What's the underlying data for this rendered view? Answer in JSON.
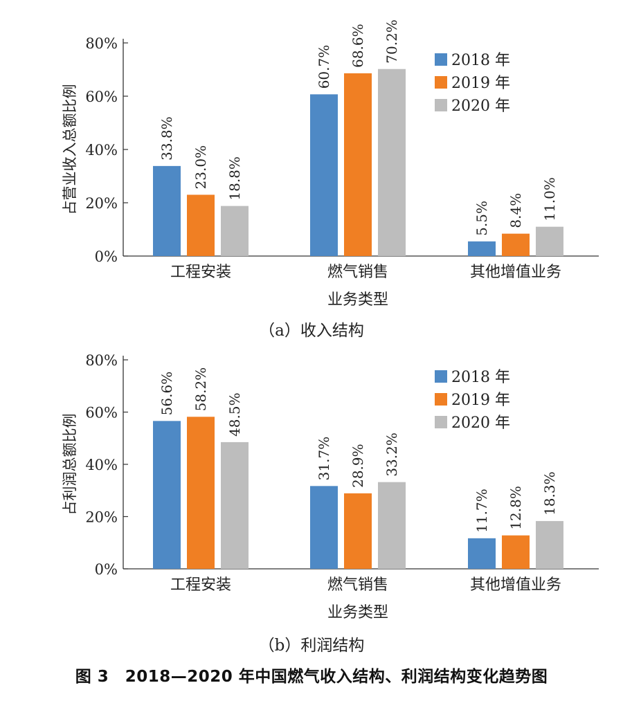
{
  "colors": {
    "s2018": "#4e89c5",
    "s2019": "#f07f23",
    "s2020": "#bdbdbd",
    "axis": "#333333"
  },
  "figure_caption": "图 3　2018—2020 年中国燃气收入结构、利润结构变化趋势图",
  "chart_data": [
    {
      "type": "bar",
      "categories": [
        "工程安装",
        "燃气销售",
        "其他增值业务"
      ],
      "series": [
        {
          "name": "2018 年",
          "values": [
            33.8,
            60.7,
            5.5
          ],
          "labels": [
            "33.8%",
            "60.7%",
            "5.5%"
          ]
        },
        {
          "name": "2019 年",
          "values": [
            23.0,
            68.6,
            8.4
          ],
          "labels": [
            "23.0%",
            "68.6%",
            "8.4%"
          ]
        },
        {
          "name": "2020 年",
          "values": [
            18.8,
            70.2,
            11.0
          ],
          "labels": [
            "18.8%",
            "70.2%",
            "11.0%"
          ]
        }
      ],
      "title": "（a）收入结构",
      "xlabel": "业务类型",
      "ylabel": "占营业收入总额比例",
      "ylim": [
        0,
        80
      ],
      "yticks": [
        0,
        20,
        40,
        60,
        80
      ],
      "ytick_labels": [
        "0%",
        "20%",
        "40%",
        "60%",
        "80%"
      ],
      "grid": false,
      "legend_position": "top-right"
    },
    {
      "type": "bar",
      "categories": [
        "工程安装",
        "燃气销售",
        "其他增值业务"
      ],
      "series": [
        {
          "name": "2018 年",
          "values": [
            56.6,
            31.7,
            11.7
          ],
          "labels": [
            "56.6%",
            "31.7%",
            "11.7%"
          ]
        },
        {
          "name": "2019 年",
          "values": [
            58.2,
            28.9,
            12.8
          ],
          "labels": [
            "58.2%",
            "28.9%",
            "12.8%"
          ]
        },
        {
          "name": "2020 年",
          "values": [
            48.5,
            33.2,
            18.3
          ],
          "labels": [
            "48.5%",
            "33.2%",
            "18.3%"
          ]
        }
      ],
      "title": "（b）利润结构",
      "xlabel": "业务类型",
      "ylabel": "占利润总额比例",
      "ylim": [
        0,
        80
      ],
      "yticks": [
        0,
        20,
        40,
        60,
        80
      ],
      "ytick_labels": [
        "0%",
        "20%",
        "40%",
        "60%",
        "80%"
      ],
      "grid": false,
      "legend_position": "top-right"
    }
  ]
}
